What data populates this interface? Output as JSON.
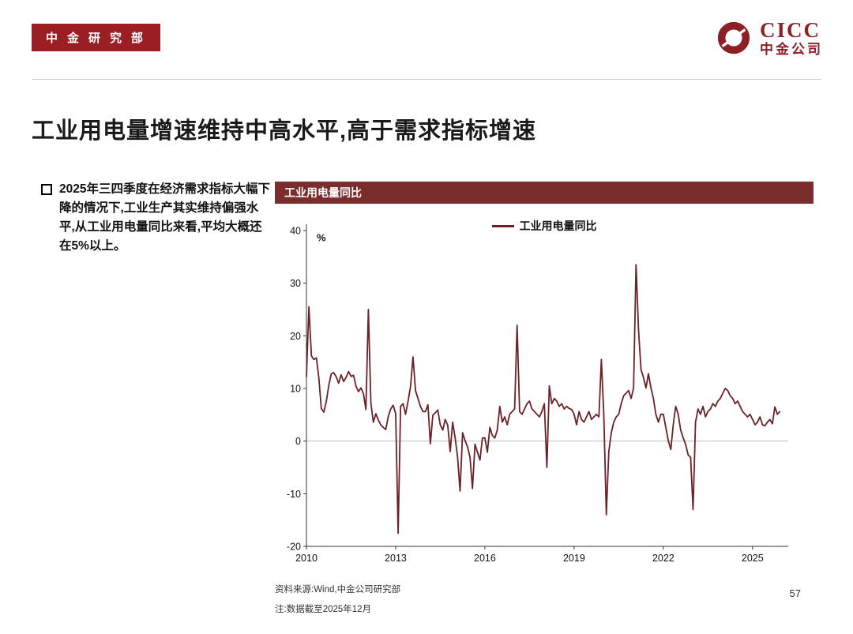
{
  "header": {
    "badge": "中金研究部",
    "logo": {
      "brand": "CICC",
      "company": "中金公司"
    }
  },
  "title": "工业用电量增速维持中高水平,高于需求指标增速",
  "bullet": {
    "text": "2025年三四季度在经济需求指标大幅下降的情况下,工业生产其实维持偏强水平,从工业用电量同比来看,平均大概还在5%以上。"
  },
  "panel": {
    "header": "工业用电量同比"
  },
  "footnotes": {
    "source": "资料来源:Wind,中金公司研究部",
    "note": "注:数据截至2025年12月"
  },
  "page_number": "57",
  "colors": {
    "badge_maroon": "#9a1e23",
    "panel_header_maroon": "#7b2d2d",
    "line_maroon": "#6b2125"
  },
  "chart_data": {
    "type": "line",
    "title": "工业用电量同比",
    "legend": [
      "工业用电量同比"
    ],
    "unit": "%",
    "frequency": "monthly",
    "x_start_year": 2010,
    "x_ticks": [
      2010,
      2013,
      2016,
      2019,
      2022,
      2025
    ],
    "y_ticks": [
      40,
      30,
      20,
      10,
      0,
      -10,
      -20
    ],
    "ylim": [
      -20,
      40
    ],
    "x_range": [
      2010,
      2026.2
    ],
    "grid": "zero-line-only",
    "legend_position": "top-center",
    "line_color": "#6b2125",
    "values": [
      12.3,
      25.5,
      16.2,
      15.5,
      15.8,
      12.0,
      6.2,
      5.5,
      7.5,
      10.5,
      12.8,
      13.0,
      12.2,
      11.0,
      12.6,
      11.3,
      12.1,
      13.2,
      12.3,
      12.5,
      10.4,
      9.4,
      10.1,
      9.0,
      6.0,
      25.0,
      7.2,
      3.6,
      5.2,
      4.0,
      3.1,
      2.6,
      2.2,
      4.6,
      6.1,
      6.8,
      5.2,
      -17.5,
      6.6,
      7.1,
      5.1,
      7.6,
      10.4,
      16.0,
      9.6,
      8.1,
      6.6,
      5.6,
      5.6,
      6.9,
      -0.5,
      4.9,
      5.4,
      5.9,
      3.1,
      2.1,
      4.1,
      3.0,
      -2.0,
      3.6,
      0.6,
      -3.1,
      -9.5,
      1.6,
      0.1,
      -1.1,
      -3.1,
      -9.0,
      -0.6,
      -2.1,
      -3.6,
      0.6,
      0.6,
      -2.1,
      2.6,
      1.1,
      0.6,
      2.1,
      6.6,
      3.6,
      4.6,
      3.1,
      5.1,
      5.6,
      6.1,
      22.0,
      5.6,
      5.1,
      6.1,
      7.1,
      7.6,
      6.1,
      5.6,
      5.1,
      4.6,
      5.6,
      7.1,
      -5.0,
      10.5,
      7.1,
      8.1,
      7.6,
      6.6,
      7.1,
      6.1,
      6.6,
      6.2,
      6.0,
      5.1,
      3.1,
      5.6,
      4.1,
      3.6,
      4.6,
      5.6,
      4.1,
      4.6,
      5.1,
      4.6,
      15.5,
      5.0,
      -14.0,
      -2.0,
      1.6,
      3.6,
      4.6,
      5.1,
      7.1,
      8.6,
      9.1,
      9.6,
      8.1,
      10.1,
      33.5,
      21.0,
      13.6,
      12.1,
      10.1,
      12.8,
      10.1,
      8.1,
      5.1,
      3.6,
      5.1,
      5.1,
      2.6,
      0.1,
      -1.6,
      3.1,
      6.6,
      5.1,
      2.1,
      0.6,
      -0.6,
      -2.6,
      -3.1,
      -13.0,
      3.6,
      6.1,
      5.1,
      6.6,
      4.6,
      5.6,
      6.1,
      7.1,
      6.6,
      7.6,
      8.1,
      9.1,
      10.0,
      9.6,
      8.6,
      8.1,
      7.1,
      7.6,
      6.6,
      5.6,
      5.1,
      4.6,
      5.1,
      4.1,
      3.1,
      3.6,
      4.6,
      3.1,
      2.9,
      3.6,
      4.1,
      3.3,
      6.5,
      5.1,
      5.6
    ]
  }
}
